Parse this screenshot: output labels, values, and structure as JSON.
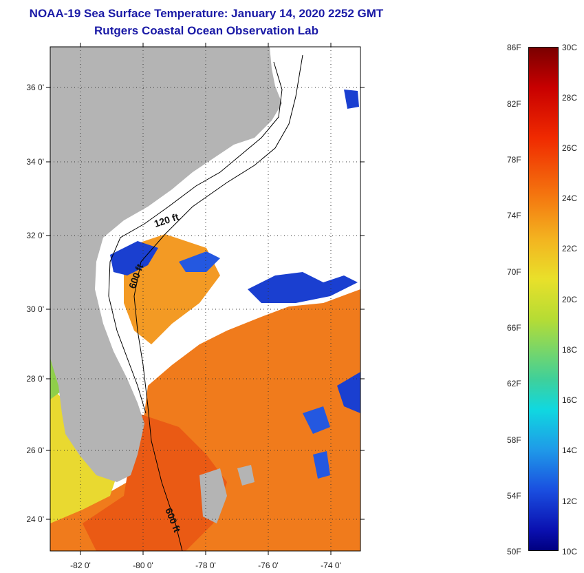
{
  "header": {
    "title": "NOAA-19 Sea Surface Temperature:  January 14, 2020 2252 GMT",
    "subtitle": "Rutgers Coastal Ocean Observation Lab"
  },
  "map": {
    "lon_ticks": [
      {
        "value": -82,
        "label": "-82 0'"
      },
      {
        "value": -80,
        "label": "-80 0'"
      },
      {
        "value": -78,
        "label": "-78 0'"
      },
      {
        "value": -76,
        "label": "-76 0'"
      },
      {
        "value": -74,
        "label": "-74 0'"
      }
    ],
    "lat_ticks": [
      {
        "value": 36,
        "label": "36 0'"
      },
      {
        "value": 34,
        "label": "34 0'"
      },
      {
        "value": 32,
        "label": "32 0'"
      },
      {
        "value": 30,
        "label": "30 0'"
      },
      {
        "value": 28,
        "label": "28 0'"
      },
      {
        "value": 26,
        "label": "26 0'"
      },
      {
        "value": 24,
        "label": "24 0'"
      }
    ],
    "lon_range": [
      -83,
      -73
    ],
    "lat_range": [
      23,
      37
    ],
    "contour_labels": [
      "120 ft",
      "600 ft",
      "600 ft"
    ],
    "colors": {
      "land": "#b4b4b4",
      "cloud": "#ffffff",
      "warm": "#f07b1c",
      "cold": "#1a3fd0"
    }
  },
  "colorbar": {
    "fahrenheit": [
      "86F",
      "82F",
      "78F",
      "74F",
      "70F",
      "66F",
      "62F",
      "58F",
      "54F",
      "50F"
    ],
    "celsius": [
      "30C",
      "28C",
      "26C",
      "24C",
      "22C",
      "20C",
      "18C",
      "16C",
      "14C",
      "12C",
      "10C"
    ]
  }
}
